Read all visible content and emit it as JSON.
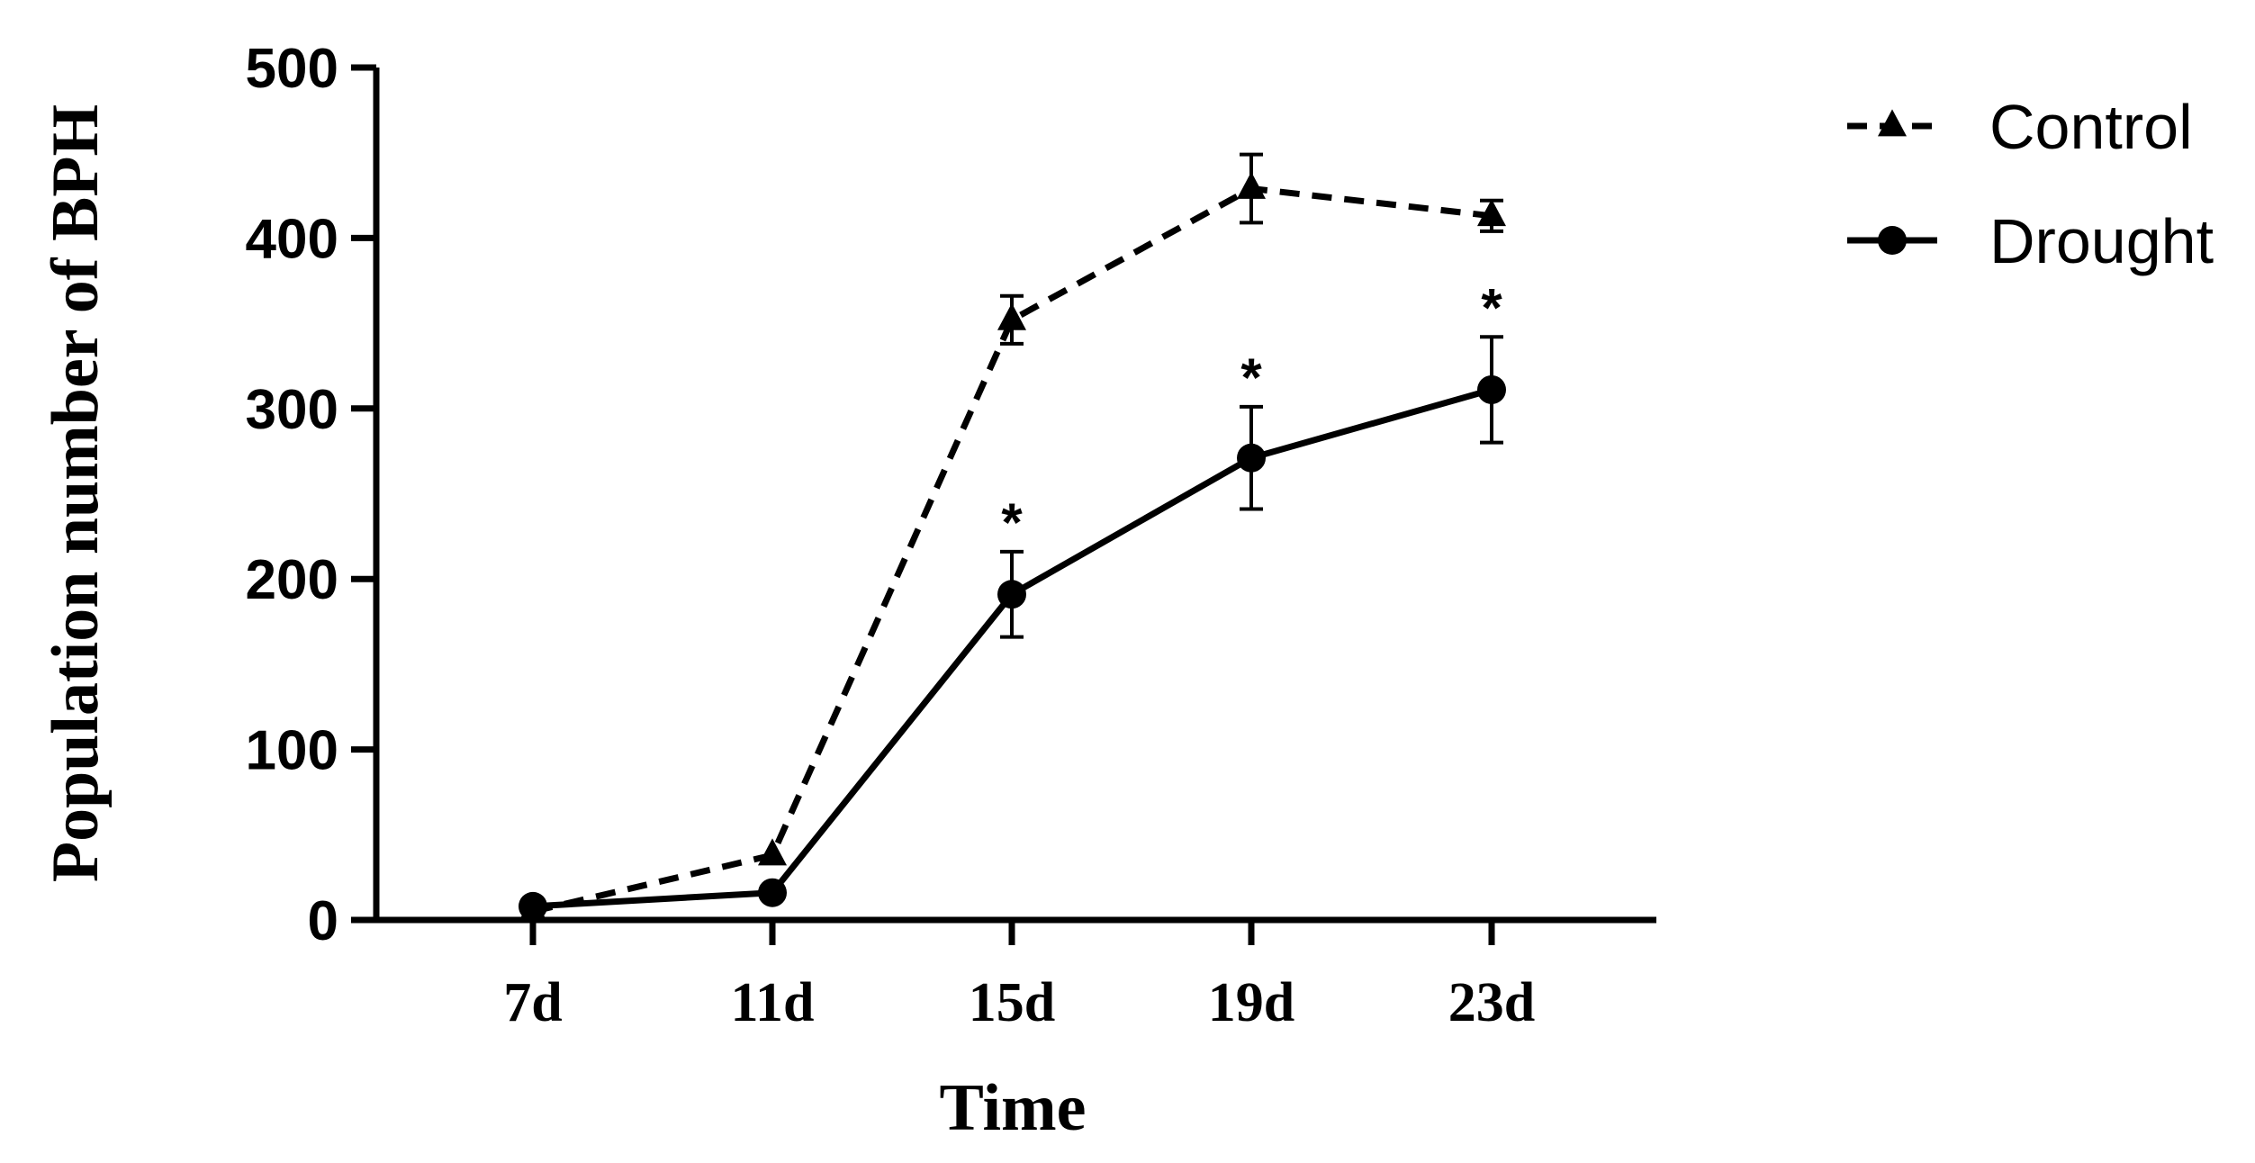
{
  "chart_data": {
    "type": "line",
    "title": "",
    "xlabel": "Time",
    "ylabel": "Population number of BPH",
    "categories": [
      "7d",
      "11d",
      "15d",
      "19d",
      "23d"
    ],
    "ylim": [
      0,
      500
    ],
    "yticks": [
      0,
      100,
      200,
      300,
      400,
      500
    ],
    "grid": false,
    "legend_position": "top-right",
    "series": [
      {
        "name": "Control",
        "values": [
          5,
          38,
          352,
          429,
          413
        ],
        "errors": [
          0,
          0,
          14,
          20,
          9
        ],
        "marker": "triangle",
        "line_style": "dashed",
        "color": "#000000"
      },
      {
        "name": "Drought",
        "values": [
          8,
          16,
          191,
          271,
          311
        ],
        "errors": [
          0,
          0,
          25,
          30,
          31
        ],
        "marker": "circle",
        "line_style": "solid",
        "color": "#000000"
      }
    ],
    "annotations": [
      {
        "category": "15d",
        "text": "*"
      },
      {
        "category": "19d",
        "text": "*"
      },
      {
        "category": "23d",
        "text": "*"
      }
    ]
  }
}
